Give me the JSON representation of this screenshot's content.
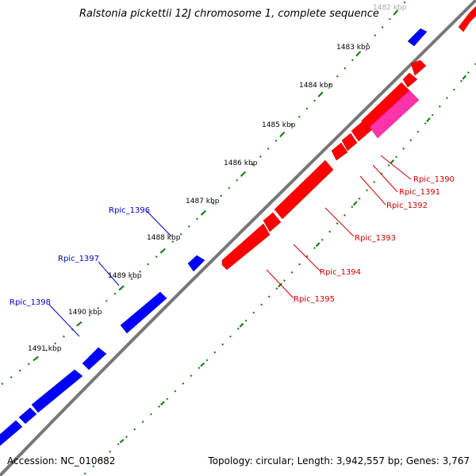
{
  "title": "Ralstonia pickettii 12J chromosome 1, complete sequence",
  "footer": {
    "accession": "Accession: NC_010682",
    "summary": "Topology: circular; Length: 3,942,557 bp; Genes: 3,767"
  },
  "colors": {
    "backbone": "#777777",
    "tick": "#1a7f1a",
    "forward_gene": "#0000ff",
    "reverse_gene": "#ff0000",
    "highlight_gene": "#ff33aa",
    "forward_label": "#0000cc",
    "reverse_label": "#cc0000"
  },
  "scale_labels": [
    "1482 kbp",
    "1483 kbp",
    "1484 kbp",
    "1485 kbp",
    "1486 kbp",
    "1487 kbp",
    "1488 kbp",
    "1489 kbp",
    "1490 kbp",
    "1491 kbp"
  ],
  "forward_genes": [
    "Rpic_1396",
    "Rpic_1397",
    "Rpic_1398"
  ],
  "reverse_genes": [
    "Rpic_1390",
    "Rpic_1391",
    "Rpic_1392",
    "Rpic_1393",
    "Rpic_1394",
    "Rpic_1395"
  ]
}
